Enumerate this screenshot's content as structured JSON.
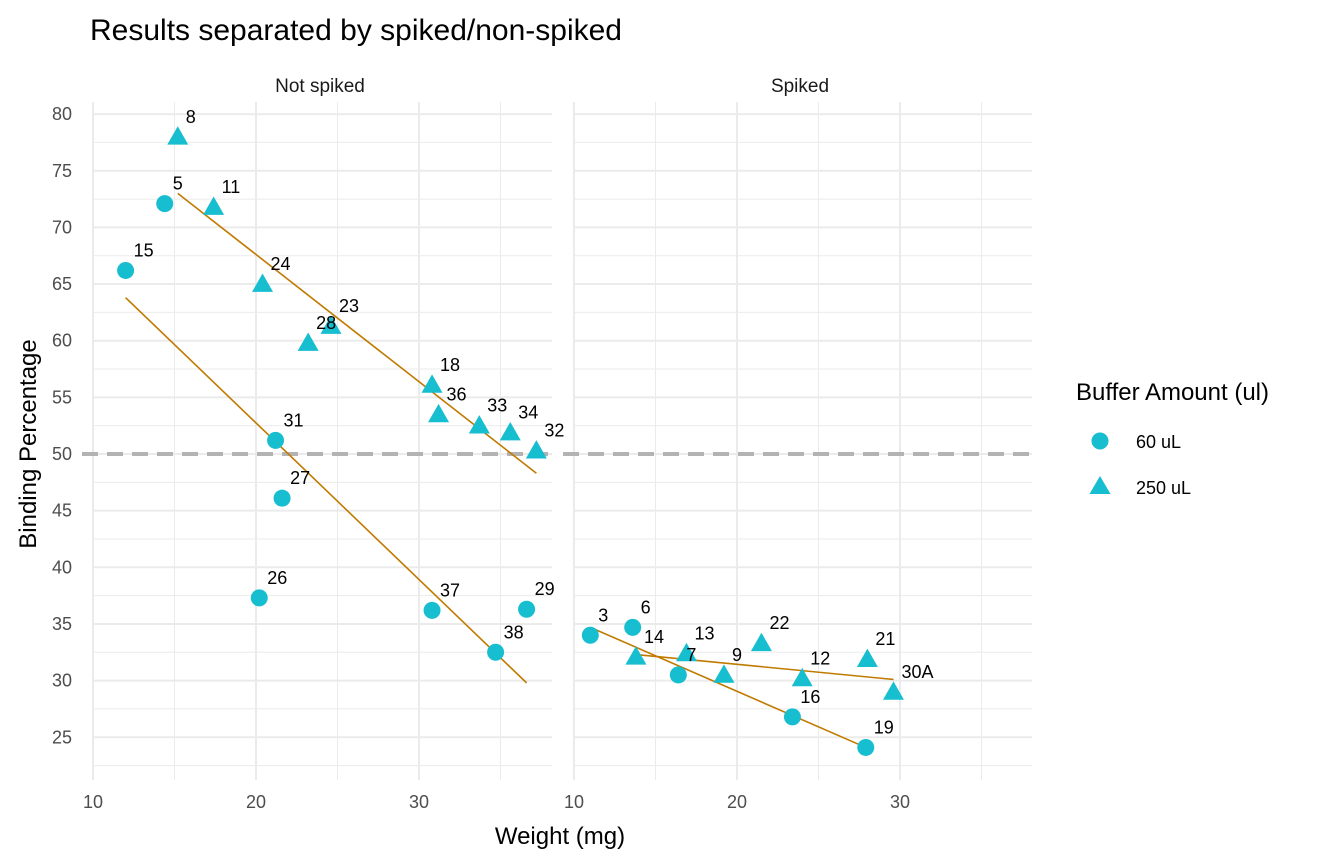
{
  "chart_data": {
    "type": "scatter",
    "title": "Results separated by spiked/non-spiked",
    "xlabel": "Weight (mg)",
    "ylabel": "Binding Percentage",
    "xlim": [
      9.5,
      37.5
    ],
    "ylim": [
      22.5,
      81
    ],
    "x_ticks": [
      10,
      20,
      30
    ],
    "y_ticks": [
      25,
      30,
      35,
      40,
      45,
      50,
      55,
      60,
      65,
      70,
      75,
      80
    ],
    "grid": true,
    "reference_line": {
      "y": 50,
      "style": "dashed",
      "color": "#b3b3b3"
    },
    "point_color": "#17becf",
    "fit_color": "#c07a00",
    "legend": {
      "title": "Buffer Amount (ul)",
      "position": "right",
      "entries": [
        {
          "label": "60 uL",
          "shape": "circle"
        },
        {
          "label": "250 uL",
          "shape": "triangle"
        }
      ]
    },
    "panels": [
      {
        "name": "Not spiked",
        "points": [
          {
            "label": "8",
            "x": 15.2,
            "y": 78,
            "buffer": "250 uL"
          },
          {
            "label": "5",
            "x": 14.4,
            "y": 72.1,
            "buffer": "60 uL"
          },
          {
            "label": "11",
            "x": 17.4,
            "y": 71.8,
            "buffer": "250 uL"
          },
          {
            "label": "15",
            "x": 12.0,
            "y": 66.2,
            "buffer": "60 uL"
          },
          {
            "label": "24",
            "x": 20.4,
            "y": 65.0,
            "buffer": "250 uL"
          },
          {
            "label": "23",
            "x": 24.6,
            "y": 61.3,
            "buffer": "250 uL"
          },
          {
            "label": "28",
            "x": 23.2,
            "y": 59.8,
            "buffer": "250 uL"
          },
          {
            "label": "18",
            "x": 30.8,
            "y": 56.1,
            "buffer": "250 uL"
          },
          {
            "label": "36",
            "x": 31.2,
            "y": 53.5,
            "buffer": "250 uL"
          },
          {
            "label": "33",
            "x": 33.7,
            "y": 52.5,
            "buffer": "250 uL"
          },
          {
            "label": "34",
            "x": 35.6,
            "y": 51.9,
            "buffer": "250 uL"
          },
          {
            "label": "32",
            "x": 37.2,
            "y": 50.3,
            "buffer": "250 uL"
          },
          {
            "label": "31",
            "x": 21.2,
            "y": 51.2,
            "buffer": "60 uL"
          },
          {
            "label": "27",
            "x": 21.6,
            "y": 46.1,
            "buffer": "60 uL"
          },
          {
            "label": "26",
            "x": 20.2,
            "y": 37.3,
            "buffer": "60 uL"
          },
          {
            "label": "37",
            "x": 30.8,
            "y": 36.2,
            "buffer": "60 uL"
          },
          {
            "label": "29",
            "x": 36.6,
            "y": 36.3,
            "buffer": "60 uL"
          },
          {
            "label": "38",
            "x": 34.7,
            "y": 32.5,
            "buffer": "60 uL"
          }
        ],
        "fits": [
          {
            "buffer": "250 uL",
            "x": [
              15.2,
              37.2
            ],
            "y": [
              73.0,
              48.3
            ]
          },
          {
            "buffer": "60 uL",
            "x": [
              12.0,
              36.6
            ],
            "y": [
              63.8,
              29.8
            ]
          }
        ]
      },
      {
        "name": "Spiked",
        "points": [
          {
            "label": "3",
            "x": 11.0,
            "y": 34.0,
            "buffer": "60 uL"
          },
          {
            "label": "6",
            "x": 13.6,
            "y": 34.7,
            "buffer": "60 uL"
          },
          {
            "label": "14",
            "x": 13.8,
            "y": 32.1,
            "buffer": "250 uL"
          },
          {
            "label": "13",
            "x": 16.9,
            "y": 32.4,
            "buffer": "250 uL"
          },
          {
            "label": "7",
            "x": 16.4,
            "y": 30.5,
            "buffer": "60 uL"
          },
          {
            "label": "9",
            "x": 19.2,
            "y": 30.5,
            "buffer": "250 uL"
          },
          {
            "label": "22",
            "x": 21.5,
            "y": 33.3,
            "buffer": "250 uL"
          },
          {
            "label": "12",
            "x": 24.0,
            "y": 30.2,
            "buffer": "250 uL"
          },
          {
            "label": "16",
            "x": 23.4,
            "y": 26.8,
            "buffer": "60 uL"
          },
          {
            "label": "21",
            "x": 28.0,
            "y": 31.9,
            "buffer": "250 uL"
          },
          {
            "label": "30A",
            "x": 29.6,
            "y": 29.0,
            "buffer": "250 uL"
          },
          {
            "label": "19",
            "x": 27.9,
            "y": 24.1,
            "buffer": "60 uL"
          }
        ],
        "fits": [
          {
            "buffer": "250 uL",
            "x": [
              13.8,
              29.6
            ],
            "y": [
              32.3,
              30.1
            ]
          },
          {
            "buffer": "60 uL",
            "x": [
              11.0,
              27.9
            ],
            "y": [
              34.7,
              24.1
            ]
          }
        ]
      }
    ]
  }
}
